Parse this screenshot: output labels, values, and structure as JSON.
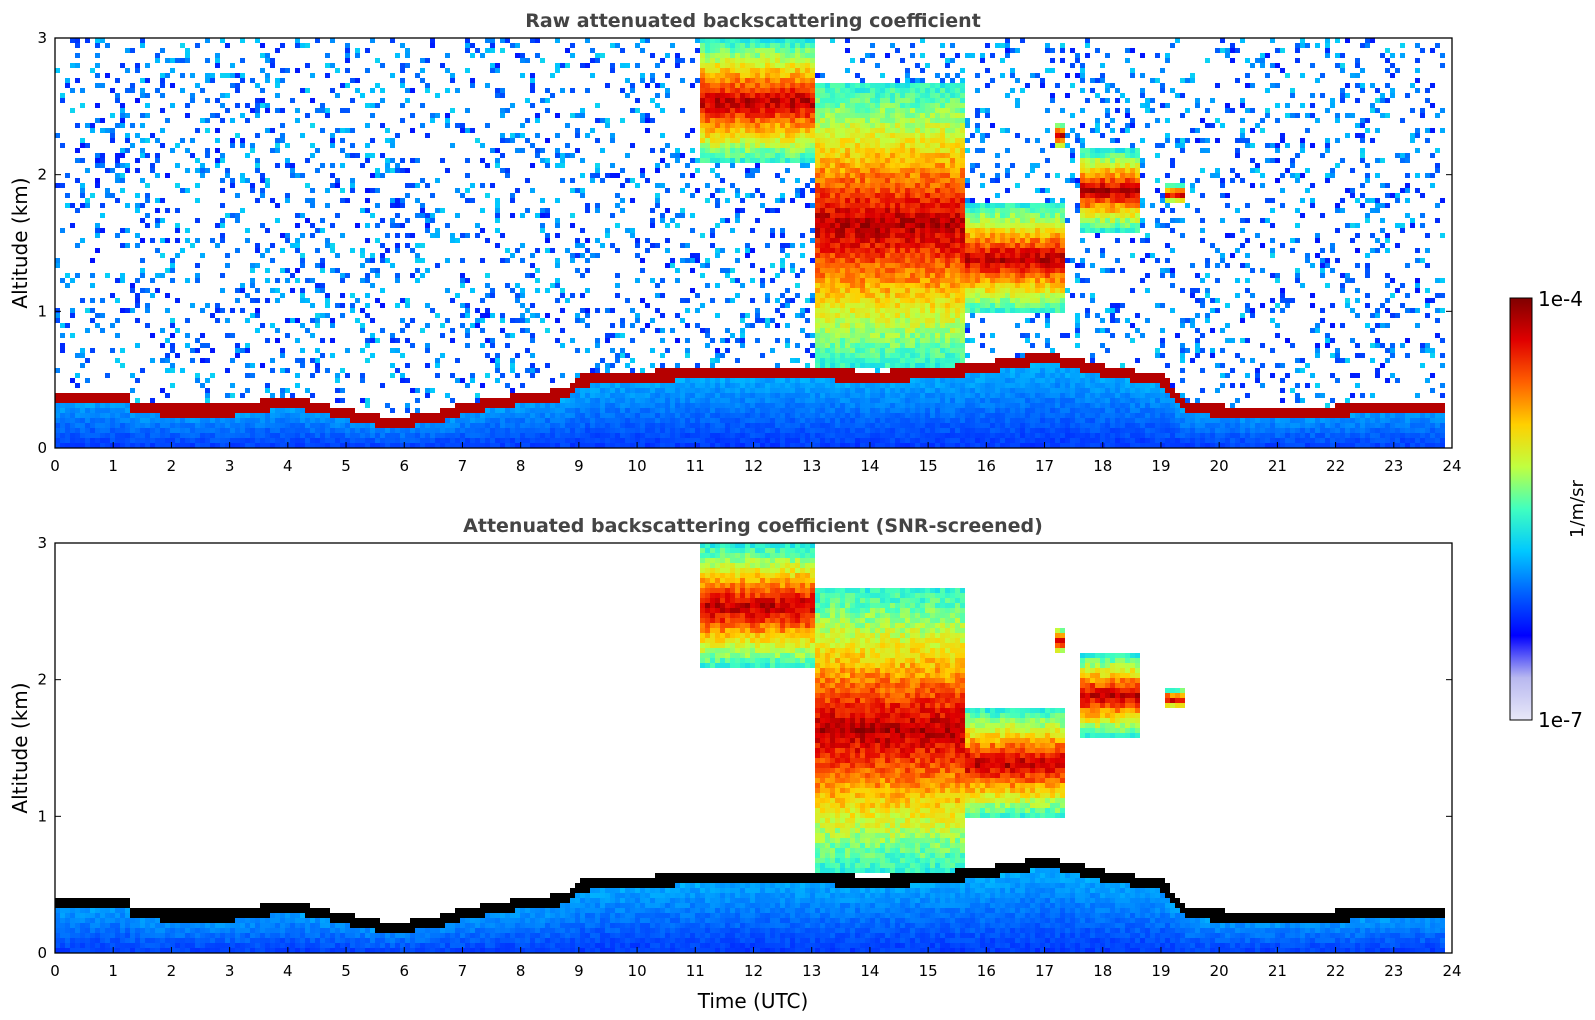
{
  "chart_data": [
    {
      "type": "heatmap",
      "title": "Raw attenuated backscattering coefficient",
      "xlabel": "",
      "ylabel": "Altitude (km)",
      "xlim": [
        0,
        24
      ],
      "ylim": [
        0,
        3
      ],
      "x_ticks": [
        "0",
        "1",
        "2",
        "3",
        "4",
        "5",
        "6",
        "7",
        "8",
        "9",
        "10",
        "11",
        "12",
        "13",
        "14",
        "15",
        "16",
        "17",
        "18",
        "19",
        "20",
        "21",
        "22",
        "23",
        "24"
      ],
      "y_ticks": [
        "0",
        "1",
        "2",
        "3"
      ],
      "data_end_time": 23.8,
      "boundary_layer_top_km": [
        [
          0,
          0.42
        ],
        [
          1.2,
          0.43
        ],
        [
          1.3,
          0.35
        ],
        [
          2,
          0.33
        ],
        [
          3,
          0.33
        ],
        [
          4,
          0.4
        ],
        [
          5,
          0.3
        ],
        [
          5.7,
          0.24
        ],
        [
          6.5,
          0.28
        ],
        [
          7,
          0.35
        ],
        [
          8,
          0.42
        ],
        [
          8.7,
          0.45
        ],
        [
          9,
          0.55
        ],
        [
          10,
          0.58
        ],
        [
          11,
          0.6
        ],
        [
          12,
          0.62
        ],
        [
          13,
          0.6
        ],
        [
          14,
          0.58
        ],
        [
          15,
          0.6
        ],
        [
          16,
          0.65
        ],
        [
          17,
          0.72
        ],
        [
          18,
          0.62
        ],
        [
          19,
          0.55
        ],
        [
          19.4,
          0.35
        ],
        [
          20,
          0.33
        ],
        [
          21,
          0.32
        ],
        [
          22,
          0.33
        ],
        [
          23,
          0.36
        ],
        [
          23.8,
          0.36
        ]
      ],
      "cloud_layers_km": [
        {
          "t": [
            11.0,
            13.0
          ],
          "base": 2.1,
          "top": 3.0,
          "intensity": "moderate"
        },
        {
          "t": [
            13.0,
            15.6
          ],
          "base": 0.6,
          "top": 2.7,
          "intensity": "strong"
        },
        {
          "t": [
            15.6,
            17.3
          ],
          "base": 1.0,
          "top": 1.8,
          "intensity": "strong"
        },
        {
          "t": [
            17.1,
            17.3
          ],
          "base": 2.2,
          "top": 2.4,
          "intensity": "strong"
        },
        {
          "t": [
            17.6,
            18.6
          ],
          "base": 1.6,
          "top": 2.2,
          "intensity": "strong"
        },
        {
          "t": [
            19.0,
            19.4
          ],
          "base": 1.8,
          "top": 1.95,
          "intensity": "strong"
        }
      ]
    },
    {
      "type": "heatmap",
      "title": "Attenuated backscattering coefficient (SNR-screened)",
      "xlabel": "Time (UTC)",
      "ylabel": "Altitude (km)",
      "xlim": [
        0,
        24
      ],
      "ylim": [
        0,
        3
      ],
      "x_ticks": [
        "0",
        "1",
        "2",
        "3",
        "4",
        "5",
        "6",
        "7",
        "8",
        "9",
        "10",
        "11",
        "12",
        "13",
        "14",
        "15",
        "16",
        "17",
        "18",
        "19",
        "20",
        "21",
        "22",
        "23",
        "24"
      ],
      "y_ticks": [
        "0",
        "1",
        "2",
        "3"
      ],
      "screened": true
    }
  ],
  "colorbar": {
    "min_label": "1e-7",
    "max_label": "1e-4",
    "unit_label": "1/m/sr",
    "scale": "log",
    "colormap": "jet",
    "colors": [
      "#e8e8f8",
      "#b8b8f0",
      "#0000ff",
      "#0060ff",
      "#00c8ff",
      "#40ffc0",
      "#c0ff40",
      "#ffd000",
      "#ff6000",
      "#e00000",
      "#800000"
    ]
  }
}
